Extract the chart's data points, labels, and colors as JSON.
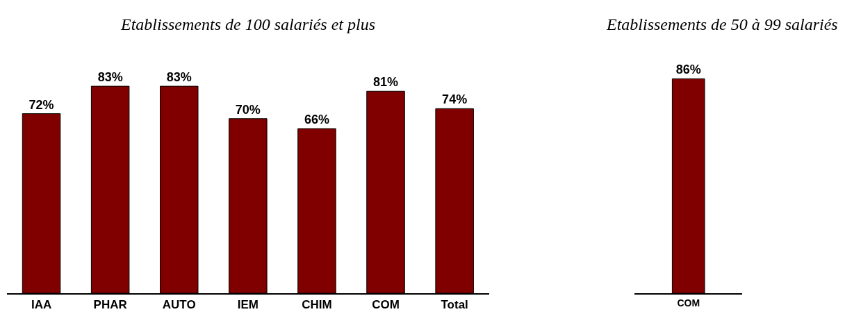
{
  "chart_data": [
    {
      "type": "bar",
      "title": "Etablissements de 100 salariés et plus",
      "categories": [
        "IAA",
        "PHAR",
        "AUTO",
        "IEM",
        "CHIM",
        "COM",
        "Total"
      ],
      "values": [
        72,
        83,
        83,
        70,
        66,
        81,
        74
      ],
      "value_labels": [
        "72%",
        "83%",
        "83%",
        "70%",
        "66%",
        "81%",
        "74%"
      ],
      "color": "#800000"
    },
    {
      "type": "bar",
      "title": "Etablissements de 50 à 99 salariés",
      "categories": [
        "COM"
      ],
      "values": [
        86
      ],
      "value_labels": [
        "86%"
      ],
      "color": "#800000"
    }
  ]
}
